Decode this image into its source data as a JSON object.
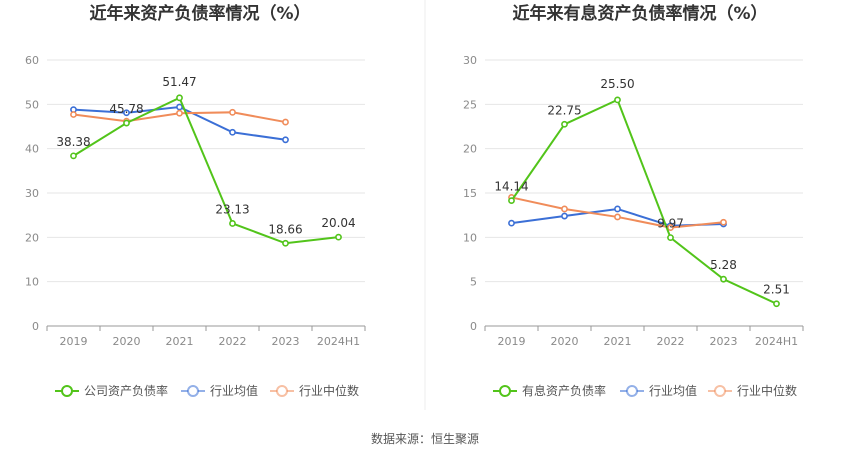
{
  "source_text": "数据来源：恒生聚源",
  "chart_data": [
    {
      "type": "line",
      "title": "近年来资产负债率情况（%）",
      "categories": [
        "2019",
        "2020",
        "2021",
        "2022",
        "2023",
        "2024H1"
      ],
      "ylim": [
        0,
        60
      ],
      "yticks": [
        0,
        10,
        20,
        30,
        40,
        50,
        60
      ],
      "grid": true,
      "legend_position": "bottom",
      "series": [
        {
          "name": "公司资产负债率",
          "color": "#52c41a",
          "values": [
            38.38,
            45.78,
            51.47,
            23.13,
            18.66,
            20.04
          ],
          "labels": [
            "38.38",
            "45.78",
            "51.47",
            "23.13",
            "18.66",
            "20.04"
          ]
        },
        {
          "name": "行业均值",
          "color": "#3b6fd6",
          "values": [
            48.8,
            48.1,
            49.4,
            43.7,
            42.0,
            null
          ]
        },
        {
          "name": "行业中位数",
          "color": "#f08c5a",
          "values": [
            47.7,
            46.2,
            48.0,
            48.2,
            46.0,
            null
          ]
        }
      ]
    },
    {
      "type": "line",
      "title": "近年来有息资产负债率情况（%）",
      "categories": [
        "2019",
        "2020",
        "2021",
        "2022",
        "2023",
        "2024H1"
      ],
      "ylim": [
        0,
        30
      ],
      "yticks": [
        0,
        5,
        10,
        15,
        20,
        25,
        30
      ],
      "grid": true,
      "legend_position": "bottom",
      "series": [
        {
          "name": "有息资产负债率",
          "color": "#52c41a",
          "values": [
            14.14,
            22.75,
            25.5,
            9.97,
            5.28,
            2.51
          ],
          "labels": [
            "14.14",
            "22.75",
            "25.50",
            "9.97",
            "5.28",
            "2.51"
          ]
        },
        {
          "name": "行业均值",
          "color": "#3b6fd6",
          "values": [
            11.6,
            12.4,
            13.2,
            11.3,
            11.5,
            null
          ]
        },
        {
          "name": "行业中位数",
          "color": "#f08c5a",
          "values": [
            14.5,
            13.2,
            12.3,
            11.1,
            11.7,
            null
          ]
        }
      ]
    }
  ]
}
